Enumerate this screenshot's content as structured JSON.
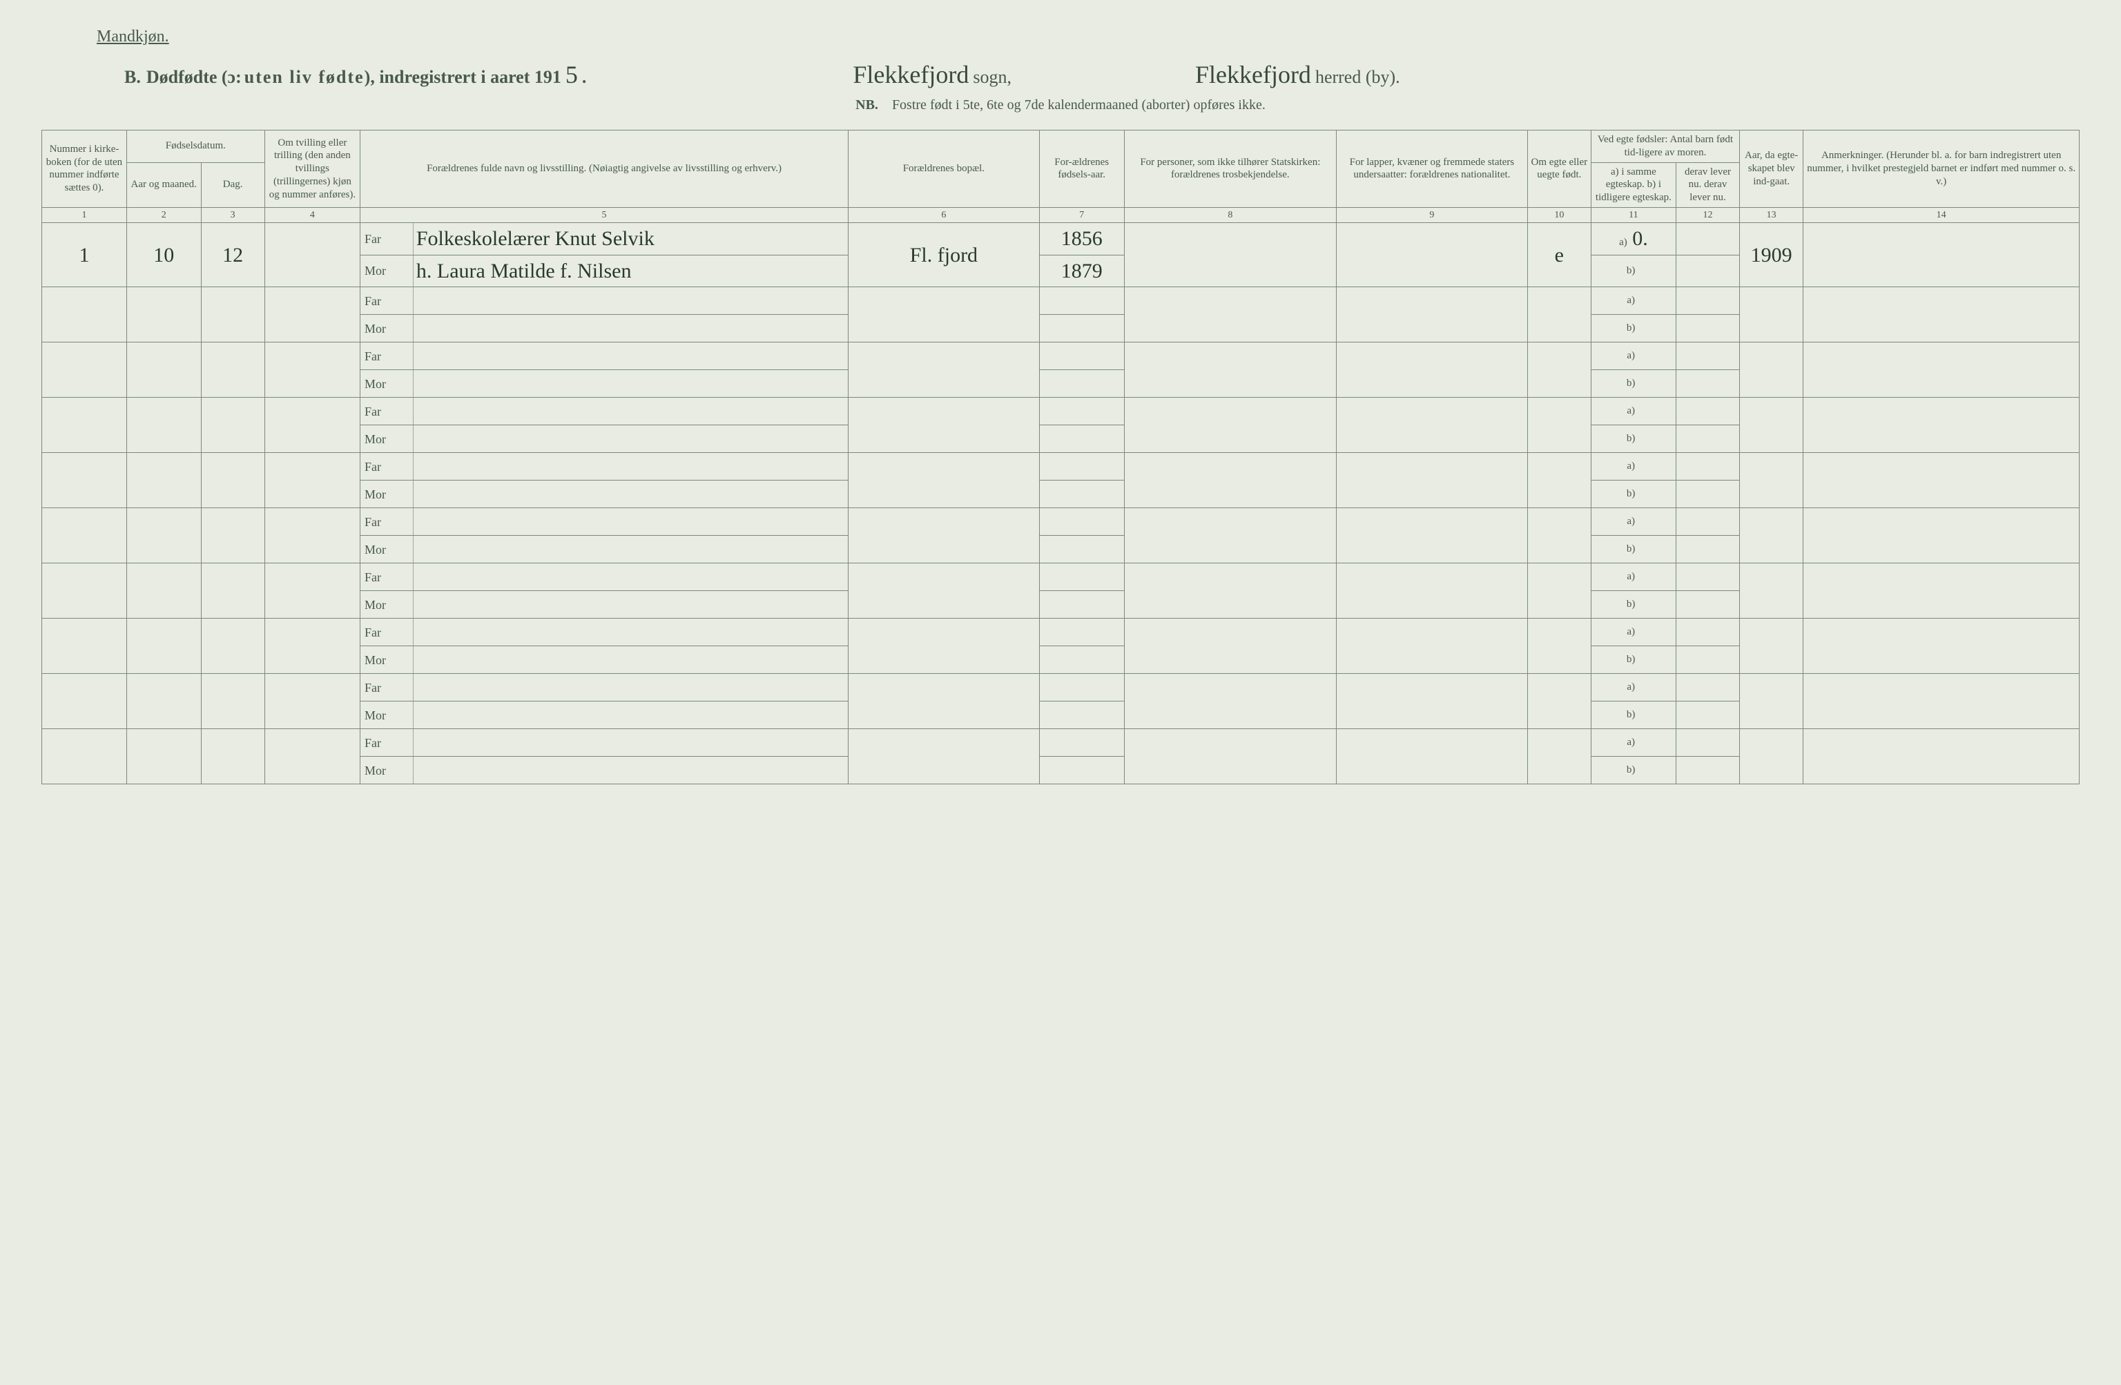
{
  "header": {
    "gender": "Mandkjøn.",
    "section_letter": "B.",
    "title_part1": "Dødfødte (ɔ:",
    "title_spaced": "uten liv fødte",
    "title_part2": "), indregistrert i aaret 191",
    "year_digit": "5",
    "period": ".",
    "sogn_value": "Flekkefjord",
    "sogn_label": "sogn,",
    "herred_value": "Flekkefjord",
    "herred_label": "herred (by).",
    "nb_label": "NB.",
    "nb_text": "Fostre født i 5te, 6te og 7de kalendermaaned (aborter) opføres ikke."
  },
  "columns": {
    "h1": "Nummer i kirke-boken (for de uten nummer indførte sættes 0).",
    "h2": "Fødselsdatum.",
    "h2a": "Aar og maaned.",
    "h2b": "Dag.",
    "h3": "Om tvilling eller trilling (den anden tvillings (trillingernes) kjøn og nummer anføres).",
    "h4": "Forældrenes fulde navn og livsstilling.\n(Nøiagtig angivelse av livsstilling og erhverv.)",
    "h5": "Forældrenes bopæl.",
    "h6": "For-ældrenes fødsels-aar.",
    "h7": "For personer, som ikke tilhører Statskirken: forældrenes trosbekjendelse.",
    "h8": "For lapper, kvæner og fremmede staters undersaatter: forældrenes nationalitet.",
    "h9": "Om egte eller uegte født.",
    "h10": "Ved egte fødsler: Antal barn født tid-ligere av moren.",
    "h10a": "a) i samme egteskap.\nb) i tidligere egteskap.",
    "h10b": "derav lever nu.\nderav lever nu.",
    "h11": "Aar, da egte-skapet blev ind-gaat.",
    "h12": "Anmerkninger.\n(Herunder bl. a. for barn indregistrert uten nummer, i hvilket prestegjeld barnet er indført med nummer o. s. v.)",
    "nums": [
      "1",
      "2",
      "3",
      "4",
      "5",
      "6",
      "7",
      "8",
      "9",
      "10",
      "11",
      "12",
      "13",
      "14"
    ]
  },
  "row_labels": {
    "far": "Far",
    "mor": "Mor",
    "a": "a)",
    "b": "b)"
  },
  "rows": [
    {
      "num": "1",
      "aar_maaned": "10",
      "dag": "12",
      "tvilling": "",
      "far_name": "Folkeskolelærer Knut Selvik",
      "mor_name": "h. Laura Matilde f. Nilsen",
      "bopel": "Fl. fjord",
      "far_aar": "1856",
      "mor_aar": "1879",
      "col8": "",
      "col9": "",
      "col10": "e",
      "a_val": "0.",
      "b_val": "",
      "a_lever": "",
      "b_lever": "",
      "col13": "1909",
      "col14": ""
    },
    {
      "num": "",
      "aar_maaned": "",
      "dag": "",
      "tvilling": "",
      "far_name": "",
      "mor_name": "",
      "bopel": "",
      "far_aar": "",
      "mor_aar": "",
      "col8": "",
      "col9": "",
      "col10": "",
      "a_val": "",
      "b_val": "",
      "a_lever": "",
      "b_lever": "",
      "col13": "",
      "col14": ""
    },
    {
      "num": "",
      "aar_maaned": "",
      "dag": "",
      "tvilling": "",
      "far_name": "",
      "mor_name": "",
      "bopel": "",
      "far_aar": "",
      "mor_aar": "",
      "col8": "",
      "col9": "",
      "col10": "",
      "a_val": "",
      "b_val": "",
      "a_lever": "",
      "b_lever": "",
      "col13": "",
      "col14": ""
    },
    {
      "num": "",
      "aar_maaned": "",
      "dag": "",
      "tvilling": "",
      "far_name": "",
      "mor_name": "",
      "bopel": "",
      "far_aar": "",
      "mor_aar": "",
      "col8": "",
      "col9": "",
      "col10": "",
      "a_val": "",
      "b_val": "",
      "a_lever": "",
      "b_lever": "",
      "col13": "",
      "col14": ""
    },
    {
      "num": "",
      "aar_maaned": "",
      "dag": "",
      "tvilling": "",
      "far_name": "",
      "mor_name": "",
      "bopel": "",
      "far_aar": "",
      "mor_aar": "",
      "col8": "",
      "col9": "",
      "col10": "",
      "a_val": "",
      "b_val": "",
      "a_lever": "",
      "b_lever": "",
      "col13": "",
      "col14": ""
    },
    {
      "num": "",
      "aar_maaned": "",
      "dag": "",
      "tvilling": "",
      "far_name": "",
      "mor_name": "",
      "bopel": "",
      "far_aar": "",
      "mor_aar": "",
      "col8": "",
      "col9": "",
      "col10": "",
      "a_val": "",
      "b_val": "",
      "a_lever": "",
      "b_lever": "",
      "col13": "",
      "col14": ""
    },
    {
      "num": "",
      "aar_maaned": "",
      "dag": "",
      "tvilling": "",
      "far_name": "",
      "mor_name": "",
      "bopel": "",
      "far_aar": "",
      "mor_aar": "",
      "col8": "",
      "col9": "",
      "col10": "",
      "a_val": "",
      "b_val": "",
      "a_lever": "",
      "b_lever": "",
      "col13": "",
      "col14": ""
    },
    {
      "num": "",
      "aar_maaned": "",
      "dag": "",
      "tvilling": "",
      "far_name": "",
      "mor_name": "",
      "bopel": "",
      "far_aar": "",
      "mor_aar": "",
      "col8": "",
      "col9": "",
      "col10": "",
      "a_val": "",
      "b_val": "",
      "a_lever": "",
      "b_lever": "",
      "col13": "",
      "col14": ""
    },
    {
      "num": "",
      "aar_maaned": "",
      "dag": "",
      "tvilling": "",
      "far_name": "",
      "mor_name": "",
      "bopel": "",
      "far_aar": "",
      "mor_aar": "",
      "col8": "",
      "col9": "",
      "col10": "",
      "a_val": "",
      "b_val": "",
      "a_lever": "",
      "b_lever": "",
      "col13": "",
      "col14": ""
    },
    {
      "num": "",
      "aar_maaned": "",
      "dag": "",
      "tvilling": "",
      "far_name": "",
      "mor_name": "",
      "bopel": "",
      "far_aar": "",
      "mor_aar": "",
      "col8": "",
      "col9": "",
      "col10": "",
      "a_val": "",
      "b_val": "",
      "a_lever": "",
      "b_lever": "",
      "col13": "",
      "col14": ""
    }
  ]
}
